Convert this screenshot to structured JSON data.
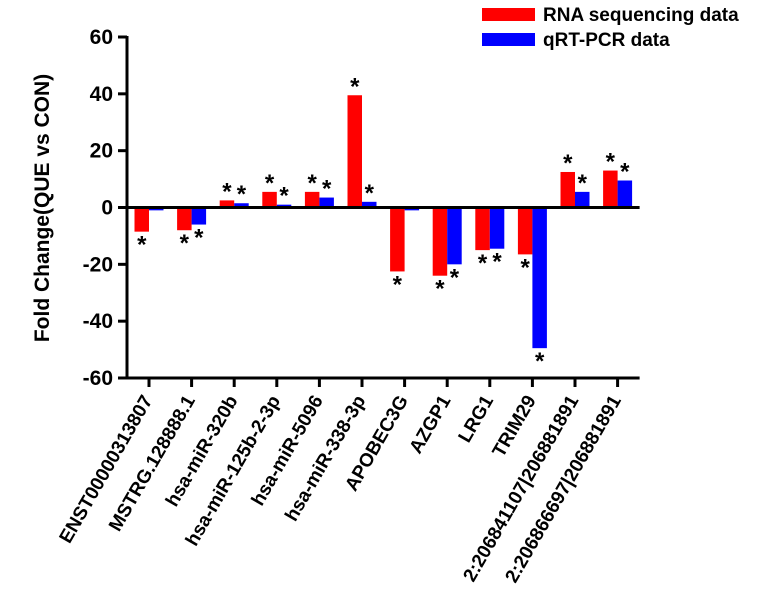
{
  "chart_data": {
    "type": "bar",
    "title": "",
    "xlabel": "",
    "ylabel": "Fold Change(QUE vs CON)",
    "ylim": [
      -60,
      60
    ],
    "yticks": [
      60,
      40,
      20,
      0,
      -20,
      -40,
      -60
    ],
    "categories": [
      "ENST00000313807",
      "MSTRG.128888.1",
      "hsa-miR-320b",
      "hsa-miR-125b-2-3p",
      "hsa-miR-5096",
      "hsa-miR-338-3p",
      "APOBEC3G",
      "AZGP1",
      "LRG1",
      "TRIM29",
      "2:206841107|206881891",
      "2:206866697|206881891"
    ],
    "series": [
      {
        "name": "RNA sequencing data",
        "color": "#ff0000",
        "values": [
          -8.5,
          -8,
          2.5,
          5.5,
          5.5,
          39.5,
          -22.5,
          -24,
          -15,
          -16.5,
          12.5,
          13
        ],
        "significance": [
          "*",
          "*",
          "*",
          "*",
          "*",
          "*",
          "*",
          "*",
          "*",
          "*",
          "*",
          "*"
        ]
      },
      {
        "name": "qRT-PCR data",
        "color": "#0000ff",
        "values": [
          -1,
          -6,
          1.5,
          1,
          3.5,
          2,
          -1,
          -20,
          -14.5,
          -49.5,
          5.5,
          9.5
        ],
        "significance": [
          "",
          "*",
          "*",
          "*",
          "*",
          "*",
          "",
          "*",
          "*",
          "*",
          "*",
          "*"
        ]
      }
    ],
    "legend": "top-right"
  }
}
